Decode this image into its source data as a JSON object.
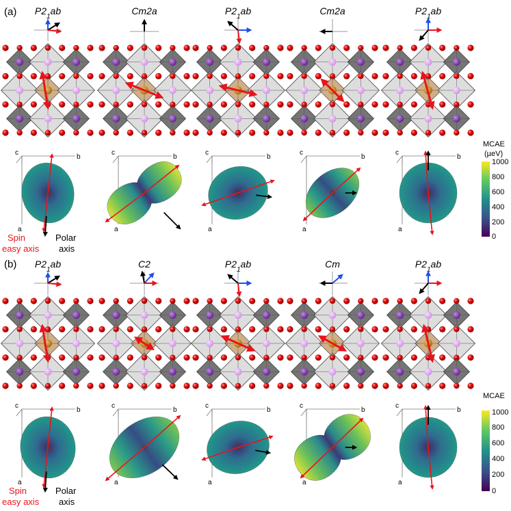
{
  "panels": [
    {
      "label": "(a)",
      "groups": [
        {
          "main": "P2",
          "sub": "1",
          "rest": "ab"
        },
        {
          "main": "Cm2a",
          "sub": "",
          "rest": ""
        },
        {
          "main": "P2",
          "sub": "1",
          "rest": "ab"
        },
        {
          "main": "Cm2a",
          "sub": "",
          "rest": ""
        },
        {
          "main": "P2",
          "sub": "1",
          "rest": "ab"
        }
      ],
      "colorbar": {
        "title_line1": "MCAE",
        "title_line2": "(µeV)",
        "ticks": [
          "1000",
          "800",
          "600",
          "400",
          "200",
          "0"
        ]
      }
    },
    {
      "label": "(b)",
      "groups": [
        {
          "main": "P2",
          "sub": "1",
          "rest": "ab"
        },
        {
          "main": "C2",
          "sub": "",
          "rest": ""
        },
        {
          "main": "P2",
          "sub": "1",
          "rest": "ab"
        },
        {
          "main": "Cm",
          "sub": "",
          "rest": ""
        },
        {
          "main": "P2",
          "sub": "1",
          "rest": "ab"
        }
      ],
      "colorbar": {
        "title_line1": "MCAE",
        "title_line2": "(µeV)",
        "ticks": [
          "1000",
          "800",
          "600",
          "400",
          "200",
          "0"
        ]
      }
    }
  ],
  "axes_labels": {
    "a": "a",
    "b": "b",
    "c": "c"
  },
  "legend": {
    "spin_line1": "Spin",
    "spin_line2": "easy axis",
    "polar_line1": "Polar",
    "polar_line2": "axis"
  },
  "colors": {
    "spin_arrow": "#e8141b",
    "polar_arrow": "#000000",
    "axis_blue": "#1f4ee8",
    "octahedron_dark": "#6e6e6e",
    "octahedron_light": "#e3e3e3",
    "octahedron_center": "#c9a272",
    "oxygen": "#e01010",
    "cation_dark": "#7a3aa8",
    "cation_light": "#dba6ea",
    "colormap": [
      "#440154",
      "#3b528b",
      "#21918c",
      "#5ec962",
      "#fde725"
    ]
  }
}
